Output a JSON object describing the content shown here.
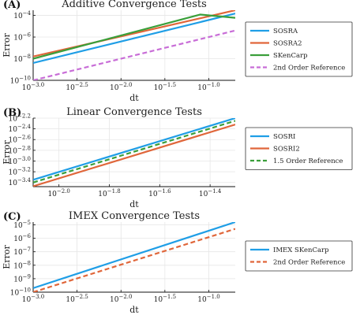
{
  "chart_data": [
    {
      "panel_label": "(A)",
      "type": "line",
      "title": "Additive Convergence Tests",
      "xlabel": "dt",
      "ylabel": "Error",
      "log_x": true,
      "log_y": true,
      "xlim": [
        0.001,
        0.2
      ],
      "ylim": [
        1e-10,
        0.0003
      ],
      "xticks": [
        {
          "v": 0.001,
          "b": "10",
          "e": "−3.0"
        },
        {
          "v": 0.00316,
          "b": "10",
          "e": "−2.5"
        },
        {
          "v": 0.01,
          "b": "10",
          "e": "−2.0"
        },
        {
          "v": 0.0316,
          "b": "10",
          "e": "−1.5"
        },
        {
          "v": 0.1,
          "b": "10",
          "e": "−1.0"
        }
      ],
      "yticks": [
        {
          "v": 1e-10,
          "b": "10",
          "e": "−10"
        },
        {
          "v": 1e-08,
          "b": "10",
          "e": "−8"
        },
        {
          "v": 1e-06,
          "b": "10",
          "e": "−6"
        },
        {
          "v": 0.0001,
          "b": "10",
          "e": "−4"
        }
      ],
      "legend_position": "right",
      "series": [
        {
          "name": "SOSRA",
          "color": "#1f9ee6",
          "dash": false,
          "x": [
            0.001,
            0.2
          ],
          "y": [
            4e-09,
            0.00015
          ]
        },
        {
          "name": "SOSRA2",
          "color": "#e0663a",
          "dash": false,
          "x": [
            0.001,
            0.2
          ],
          "y": [
            1.6e-08,
            0.0003
          ]
        },
        {
          "name": "SKenCarp",
          "color": "#3a9f3a",
          "dash": false,
          "x": [
            0.001,
            0.08,
            0.2
          ],
          "y": [
            1e-08,
            0.00012,
            6e-05
          ]
        },
        {
          "name": "2nd Order Reference",
          "color": "#c86dd7",
          "dash": true,
          "x": [
            0.001,
            0.2
          ],
          "y": [
            1e-10,
            4e-06
          ]
        }
      ]
    },
    {
      "panel_label": "(B)",
      "type": "line",
      "title": "Linear Convergence Tests",
      "xlabel": "dt",
      "ylabel": "Error",
      "log_x": true,
      "log_y": true,
      "xlim": [
        0.0079,
        0.0501
      ],
      "ylim": [
        0.000333,
        0.00631
      ],
      "xticks": [
        {
          "v": 0.01,
          "b": "10",
          "e": "−2.0"
        },
        {
          "v": 0.01585,
          "b": "10",
          "e": "−1.8"
        },
        {
          "v": 0.02512,
          "b": "10",
          "e": "−1.6"
        },
        {
          "v": 0.03981,
          "b": "10",
          "e": "−1.4"
        }
      ],
      "yticks": [
        {
          "v": 0.000398,
          "b": "10",
          "e": "−3.4"
        },
        {
          "v": 0.000631,
          "b": "10",
          "e": "−3.2"
        },
        {
          "v": 0.001,
          "b": "10",
          "e": "−3.0"
        },
        {
          "v": 0.001585,
          "b": "10",
          "e": "−2.8"
        },
        {
          "v": 0.002512,
          "b": "10",
          "e": "−2.6"
        },
        {
          "v": 0.003981,
          "b": "10",
          "e": "−2.4"
        },
        {
          "v": 0.00631,
          "b": "10",
          "e": "−2.2"
        }
      ],
      "legend_position": "right",
      "series": [
        {
          "name": "SOSRI",
          "color": "#1f9ee6",
          "dash": false,
          "x": [
            0.0079,
            0.0501
          ],
          "y": [
            0.000447,
            0.00631
          ]
        },
        {
          "name": "SOSRI2",
          "color": "#e0663a",
          "dash": false,
          "x": [
            0.0079,
            0.0501
          ],
          "y": [
            0.000339,
            0.00479
          ]
        },
        {
          "name": "1.5 Order Reference",
          "color": "#3a9f3a",
          "dash": true,
          "x": [
            0.0079,
            0.0501
          ],
          "y": [
            0.000398,
            0.00562
          ]
        }
      ]
    },
    {
      "panel_label": "(C)",
      "type": "line",
      "title": "IMEX Convergence Tests",
      "xlabel": "dt",
      "ylabel": "Error",
      "log_x": true,
      "log_y": true,
      "xlim": [
        0.001,
        0.2
      ],
      "ylim": [
        1e-10,
        1.6e-05
      ],
      "xticks": [
        {
          "v": 0.001,
          "b": "10",
          "e": "−3.0"
        },
        {
          "v": 0.00316,
          "b": "10",
          "e": "−2.5"
        },
        {
          "v": 0.01,
          "b": "10",
          "e": "−2.0"
        },
        {
          "v": 0.0316,
          "b": "10",
          "e": "−1.5"
        },
        {
          "v": 0.1,
          "b": "10",
          "e": "−1.0"
        }
      ],
      "yticks": [
        {
          "v": 1e-10,
          "b": "10",
          "e": "−10"
        },
        {
          "v": 1e-09,
          "b": "10",
          "e": "−9"
        },
        {
          "v": 1e-08,
          "b": "10",
          "e": "−8"
        },
        {
          "v": 1e-07,
          "b": "10",
          "e": "−7"
        },
        {
          "v": 1e-06,
          "b": "10",
          "e": "−6"
        },
        {
          "v": 1e-05,
          "b": "10",
          "e": "−5"
        }
      ],
      "legend_position": "right",
      "series": [
        {
          "name": "IMEX SKenCarp",
          "color": "#1f9ee6",
          "dash": false,
          "x": [
            0.001,
            0.2
          ],
          "y": [
            2e-10,
            1.6e-05
          ]
        },
        {
          "name": "2nd Order Reference",
          "color": "#e0663a",
          "dash": true,
          "x": [
            0.001,
            0.2
          ],
          "y": [
            1e-10,
            5e-06
          ]
        }
      ]
    }
  ]
}
